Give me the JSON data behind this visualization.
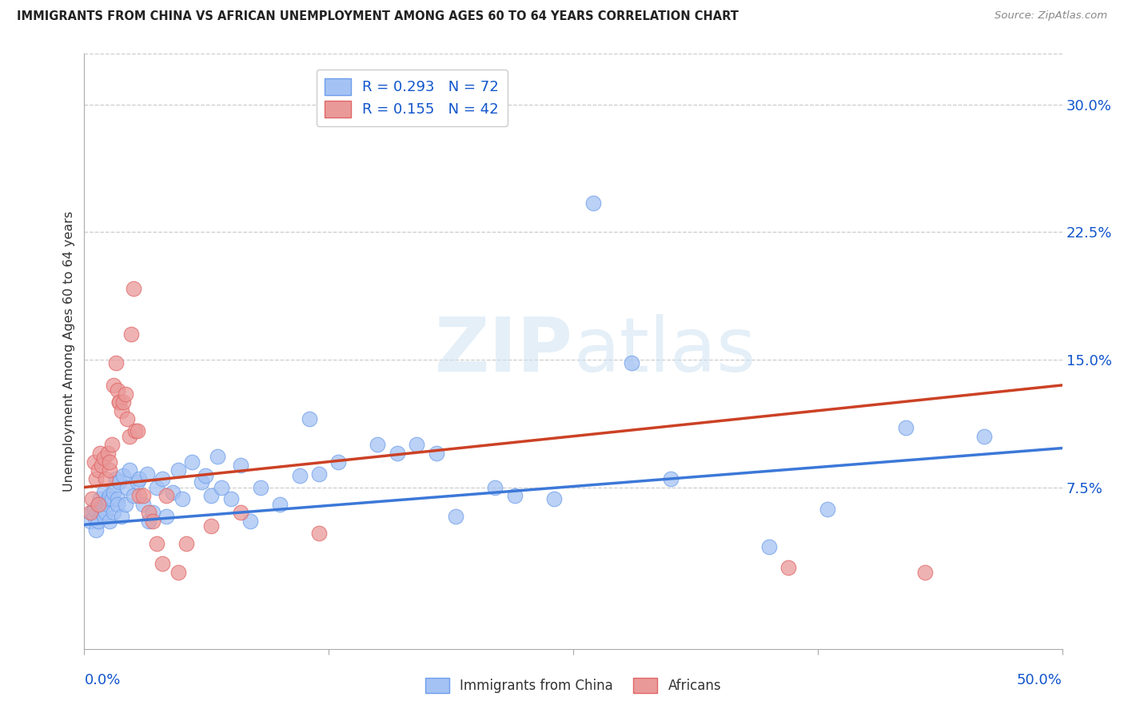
{
  "title": "IMMIGRANTS FROM CHINA VS AFRICAN UNEMPLOYMENT AMONG AGES 60 TO 64 YEARS CORRELATION CHART",
  "source": "Source: ZipAtlas.com",
  "ylabel": "Unemployment Among Ages 60 to 64 years",
  "ytick_values": [
    0.075,
    0.15,
    0.225,
    0.3
  ],
  "ytick_labels": [
    "7.5%",
    "15.0%",
    "22.5%",
    "30.0%"
  ],
  "xlim": [
    0.0,
    0.5
  ],
  "ylim": [
    -0.02,
    0.33
  ],
  "legend_line1": "R = 0.293   N = 72",
  "legend_line2": "R = 0.155   N = 42",
  "legend_bottom1": "Immigrants from China",
  "legend_bottom2": "Africans",
  "watermark": "ZIPatlas",
  "blue_face": "#a4c2f4",
  "blue_edge": "#6d9eeb",
  "pink_face": "#ea9999",
  "pink_edge": "#e06666",
  "blue_text": "#1155cc",
  "line_blue": "#3c78d8",
  "line_pink": "#cc4125",
  "blue_scatter": [
    [
      0.003,
      0.055
    ],
    [
      0.004,
      0.06
    ],
    [
      0.005,
      0.058
    ],
    [
      0.005,
      0.062
    ],
    [
      0.006,
      0.05
    ],
    [
      0.007,
      0.065
    ],
    [
      0.007,
      0.055
    ],
    [
      0.008,
      0.068
    ],
    [
      0.009,
      0.063
    ],
    [
      0.009,
      0.06
    ],
    [
      0.01,
      0.058
    ],
    [
      0.01,
      0.072
    ],
    [
      0.011,
      0.06
    ],
    [
      0.012,
      0.065
    ],
    [
      0.012,
      0.068
    ],
    [
      0.013,
      0.055
    ],
    [
      0.013,
      0.07
    ],
    [
      0.014,
      0.068
    ],
    [
      0.015,
      0.072
    ],
    [
      0.015,
      0.06
    ],
    [
      0.016,
      0.08
    ],
    [
      0.017,
      0.068
    ],
    [
      0.017,
      0.065
    ],
    [
      0.018,
      0.078
    ],
    [
      0.019,
      0.058
    ],
    [
      0.02,
      0.082
    ],
    [
      0.021,
      0.065
    ],
    [
      0.022,
      0.075
    ],
    [
      0.023,
      0.085
    ],
    [
      0.025,
      0.07
    ],
    [
      0.027,
      0.078
    ],
    [
      0.028,
      0.08
    ],
    [
      0.03,
      0.065
    ],
    [
      0.032,
      0.083
    ],
    [
      0.033,
      0.055
    ],
    [
      0.035,
      0.06
    ],
    [
      0.037,
      0.075
    ],
    [
      0.04,
      0.08
    ],
    [
      0.042,
      0.058
    ],
    [
      0.045,
      0.072
    ],
    [
      0.048,
      0.085
    ],
    [
      0.05,
      0.068
    ],
    [
      0.055,
      0.09
    ],
    [
      0.06,
      0.078
    ],
    [
      0.062,
      0.082
    ],
    [
      0.065,
      0.07
    ],
    [
      0.068,
      0.093
    ],
    [
      0.07,
      0.075
    ],
    [
      0.075,
      0.068
    ],
    [
      0.08,
      0.088
    ],
    [
      0.085,
      0.055
    ],
    [
      0.09,
      0.075
    ],
    [
      0.1,
      0.065
    ],
    [
      0.11,
      0.082
    ],
    [
      0.115,
      0.115
    ],
    [
      0.12,
      0.083
    ],
    [
      0.13,
      0.09
    ],
    [
      0.15,
      0.1
    ],
    [
      0.16,
      0.095
    ],
    [
      0.17,
      0.1
    ],
    [
      0.18,
      0.095
    ],
    [
      0.19,
      0.058
    ],
    [
      0.21,
      0.075
    ],
    [
      0.22,
      0.07
    ],
    [
      0.24,
      0.068
    ],
    [
      0.26,
      0.242
    ],
    [
      0.28,
      0.148
    ],
    [
      0.3,
      0.08
    ],
    [
      0.35,
      0.04
    ],
    [
      0.38,
      0.062
    ],
    [
      0.42,
      0.11
    ],
    [
      0.46,
      0.105
    ]
  ],
  "pink_scatter": [
    [
      0.003,
      0.06
    ],
    [
      0.004,
      0.068
    ],
    [
      0.005,
      0.09
    ],
    [
      0.006,
      0.08
    ],
    [
      0.007,
      0.085
    ],
    [
      0.007,
      0.065
    ],
    [
      0.008,
      0.095
    ],
    [
      0.009,
      0.088
    ],
    [
      0.01,
      0.092
    ],
    [
      0.011,
      0.08
    ],
    [
      0.012,
      0.095
    ],
    [
      0.013,
      0.085
    ],
    [
      0.013,
      0.09
    ],
    [
      0.014,
      0.1
    ],
    [
      0.015,
      0.135
    ],
    [
      0.016,
      0.148
    ],
    [
      0.017,
      0.132
    ],
    [
      0.018,
      0.125
    ],
    [
      0.018,
      0.125
    ],
    [
      0.019,
      0.12
    ],
    [
      0.02,
      0.125
    ],
    [
      0.021,
      0.13
    ],
    [
      0.022,
      0.115
    ],
    [
      0.023,
      0.105
    ],
    [
      0.024,
      0.165
    ],
    [
      0.025,
      0.192
    ],
    [
      0.026,
      0.108
    ],
    [
      0.027,
      0.108
    ],
    [
      0.028,
      0.07
    ],
    [
      0.03,
      0.07
    ],
    [
      0.033,
      0.06
    ],
    [
      0.035,
      0.055
    ],
    [
      0.037,
      0.042
    ],
    [
      0.04,
      0.03
    ],
    [
      0.042,
      0.07
    ],
    [
      0.048,
      0.025
    ],
    [
      0.052,
      0.042
    ],
    [
      0.065,
      0.052
    ],
    [
      0.08,
      0.06
    ],
    [
      0.12,
      0.048
    ],
    [
      0.36,
      0.028
    ],
    [
      0.43,
      0.025
    ]
  ],
  "blue_trend_x": [
    0.0,
    0.5
  ],
  "blue_trend_y": [
    0.053,
    0.098
  ],
  "pink_trend_x": [
    0.0,
    0.5
  ],
  "pink_trend_y": [
    0.075,
    0.135
  ]
}
